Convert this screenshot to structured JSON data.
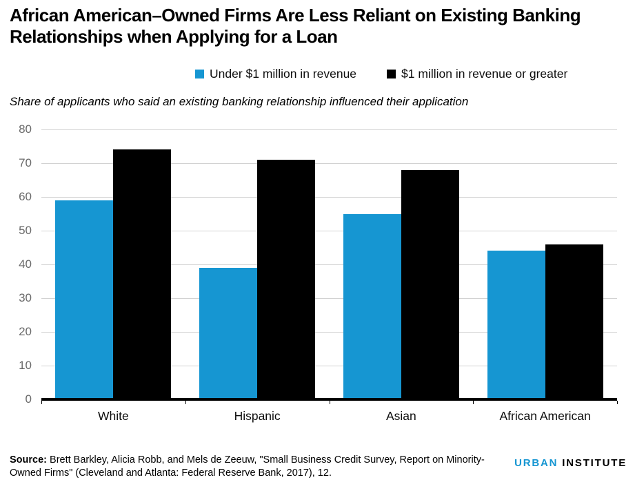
{
  "title": "African American–Owned Firms Are Less Reliant on Existing Banking Relationships when Applying for a Loan",
  "subtitle": "Share of applicants who said an existing banking relationship influenced their application",
  "colors": {
    "series_blue": "#1696d2",
    "series_black": "#000000",
    "gridline": "#d2d2d2",
    "y_tick_label": "#696969"
  },
  "chart_data": {
    "type": "bar",
    "title": "African American–Owned Firms Are Less Reliant on Existing Banking Relationships when Applying for a Loan",
    "subtitle": "Share of applicants who said an existing banking relationship influenced their application",
    "categories": [
      "White",
      "Hispanic",
      "Asian",
      "African American"
    ],
    "series": [
      {
        "name": "Under $1 million in revenue",
        "color": "#1696d2",
        "values": [
          59,
          39,
          55,
          44
        ]
      },
      {
        "name": "$1 million in revenue or greater",
        "color": "#000000",
        "values": [
          74,
          71,
          68,
          46
        ]
      }
    ],
    "xlabel": "",
    "ylabel": "",
    "ylim": [
      0,
      80
    ],
    "yticks": [
      0,
      10,
      20,
      30,
      40,
      50,
      60,
      70,
      80
    ],
    "grid": true,
    "legend_position": "top-center"
  },
  "legend": [
    {
      "label": "Under $1 million in revenue",
      "color": "#1696d2"
    },
    {
      "label": "$1 million in revenue or greater",
      "color": "#000000"
    }
  ],
  "source": {
    "label": "Source:",
    "text": " Brett Barkley, Alicia Robb, and Mels de Zeeuw, \"Small Business Credit Survey, Report on Minority-Owned Firms\" (Cleveland and Atlanta: Federal Reserve Bank, 2017), 12."
  },
  "logo": {
    "urban": "URBAN",
    "institute": "INSTITUTE"
  }
}
